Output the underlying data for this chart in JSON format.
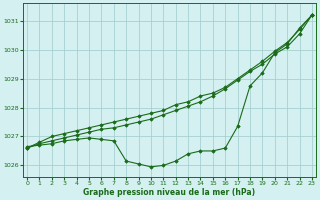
{
  "x": [
    0,
    1,
    2,
    3,
    4,
    5,
    6,
    7,
    8,
    9,
    10,
    11,
    12,
    13,
    14,
    15,
    16,
    17,
    18,
    19,
    20,
    21,
    22,
    23
  ],
  "line1": [
    1026.6,
    1026.8,
    1027.0,
    1027.1,
    1027.2,
    1027.3,
    1027.4,
    1027.5,
    1027.6,
    1027.7,
    1027.8,
    1027.9,
    1028.1,
    1028.2,
    1028.4,
    1028.5,
    1028.7,
    1029.0,
    1029.3,
    1029.6,
    1029.95,
    1030.25,
    1030.7,
    1031.2
  ],
  "line2": [
    1026.6,
    1026.75,
    1026.85,
    1026.95,
    1027.05,
    1027.15,
    1027.25,
    1027.3,
    1027.4,
    1027.5,
    1027.6,
    1027.75,
    1027.9,
    1028.05,
    1028.2,
    1028.4,
    1028.65,
    1028.95,
    1029.25,
    1029.5,
    1029.85,
    1030.1,
    1030.55,
    1031.2
  ],
  "line3": [
    1026.65,
    1026.7,
    1026.75,
    1026.85,
    1026.9,
    1026.95,
    1026.9,
    1026.85,
    1026.15,
    1026.05,
    1025.95,
    1026.0,
    1026.15,
    1026.4,
    1026.5,
    1026.5,
    1026.6,
    1027.35,
    1028.75,
    1029.2,
    1029.9,
    1030.2,
    1030.75,
    1031.2
  ],
  "ylim": [
    1025.6,
    1031.6
  ],
  "yticks": [
    1026,
    1027,
    1028,
    1029,
    1030,
    1031
  ],
  "xticks": [
    0,
    1,
    2,
    3,
    4,
    5,
    6,
    7,
    8,
    9,
    10,
    11,
    12,
    13,
    14,
    15,
    16,
    17,
    18,
    19,
    20,
    21,
    22,
    23
  ],
  "xlabel": "Graphe pression niveau de la mer (hPa)",
  "line_color": "#1a6b1a",
  "marker": "D",
  "marker_size": 1.8,
  "bg_color": "#d4f0f0",
  "grid_color": "#a0cccc",
  "figsize": [
    3.2,
    2.0
  ],
  "dpi": 100
}
